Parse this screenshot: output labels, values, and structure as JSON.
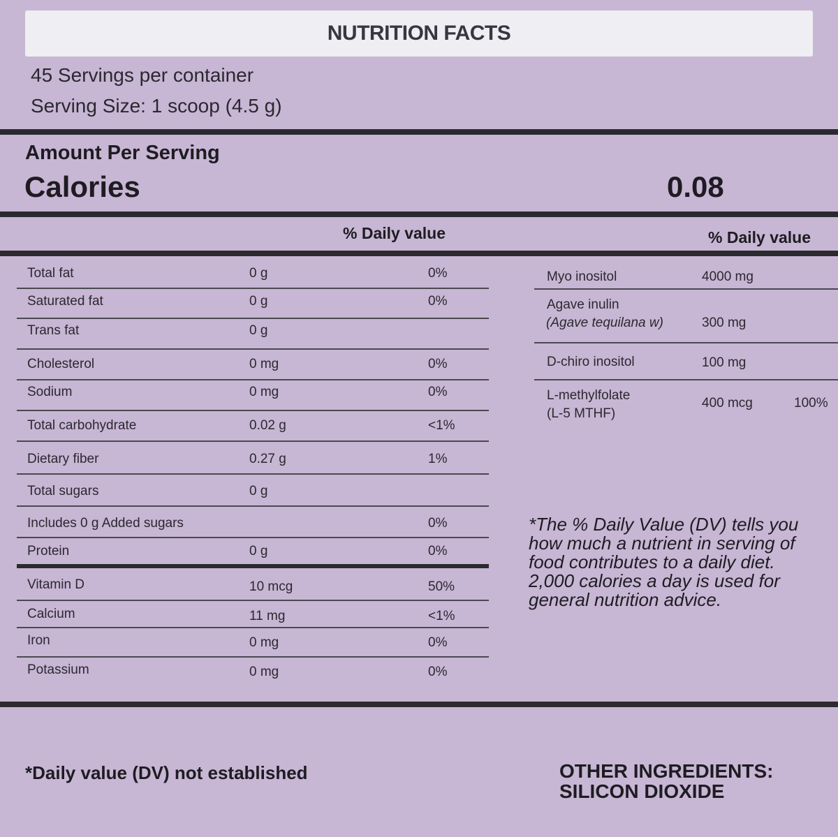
{
  "header": {
    "title": "NUTRITION FACTS"
  },
  "serving": {
    "servings_per_container": "45 Servings per container",
    "serving_size": "Serving Size: 1 scoop (4.5 g)"
  },
  "amount": {
    "heading": "Amount Per Serving",
    "calories_label": "Calories",
    "calories_value": "0.08"
  },
  "dv_headers": {
    "left": "% Daily value",
    "right": "% Daily value"
  },
  "nutrients": [
    {
      "name": "Total fat",
      "amount": "0 g",
      "dv": "0%"
    },
    {
      "name": "Saturated fat",
      "amount": "0 g",
      "dv": "0%"
    },
    {
      "name": "Trans fat",
      "amount": "0 g",
      "dv": ""
    },
    {
      "name": "Cholesterol",
      "amount": "0 mg",
      "dv": "0%"
    },
    {
      "name": "Sodium",
      "amount": "0 mg",
      "dv": "0%"
    },
    {
      "name": "Total carbohydrate",
      "amount": "0.02 g",
      "dv": "<1%"
    },
    {
      "name": "Dietary fiber",
      "amount": "0.27 g",
      "dv": "1%"
    },
    {
      "name": "Total sugars",
      "amount": "0 g",
      "dv": ""
    },
    {
      "name": "Includes 0 g Added sugars",
      "amount": "",
      "dv": "0%"
    },
    {
      "name": "Protein",
      "amount": "0 g",
      "dv": "0%"
    }
  ],
  "vitamins": [
    {
      "name": "Vitamin D",
      "amount": "10 mcg",
      "dv": "50%"
    },
    {
      "name": "Calcium",
      "amount": "11 mg",
      "dv": "<1%"
    },
    {
      "name": "Iron",
      "amount": "0 mg",
      "dv": "0%"
    },
    {
      "name": "Potassium",
      "amount": "0 mg",
      "dv": "0%"
    }
  ],
  "supplements": [
    {
      "name": "Myo inositol",
      "sub": "",
      "amount": "4000 mg",
      "dv": ""
    },
    {
      "name": "Agave inulin",
      "sub": "(Agave tequilana w)",
      "amount": "300 mg",
      "dv": ""
    },
    {
      "name": "D-chiro inositol",
      "sub": "",
      "amount": "100 mg",
      "dv": ""
    },
    {
      "name": "L-methylfolate",
      "sub": "(L-5 MTHF)",
      "amount": "400 mcg",
      "dv": "100%"
    }
  ],
  "dv_note": {
    "line1": "*The % Daily Value (DV) tells you",
    "line2": "how much a nutrient in serving of",
    "line3": "food contributes to a daily diet.",
    "line4": "2,000 calories a day is used for",
    "line5": "general nutrition advice."
  },
  "footer": {
    "dv_not_established": "*Daily value (DV) not established",
    "other_ingredients_label": "OTHER INGREDIENTS:",
    "other_ingredients_value": "SILICON DIOXIDE"
  }
}
